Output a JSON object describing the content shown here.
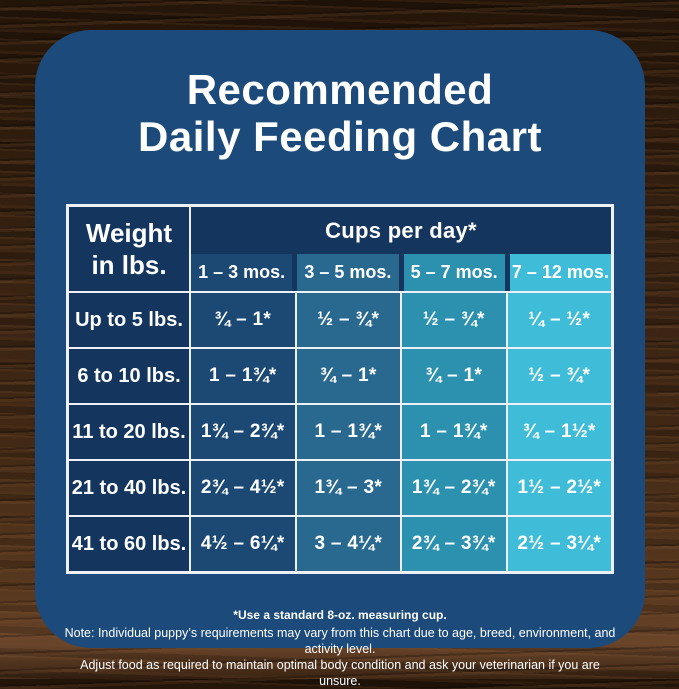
{
  "title": {
    "line1": "Recommended",
    "line2": "Daily Feeding Chart"
  },
  "table": {
    "weight_header_line1": "Weight",
    "weight_header_line2": "in lbs.",
    "cups_header": "Cups per day*",
    "age_columns": [
      "1 – 3 mos.",
      "3 – 5 mos.",
      "5 – 7 mos.",
      "7 – 12 mos."
    ],
    "rows": [
      {
        "weight": "Up to 5 lbs.",
        "values": [
          "¾ – 1*",
          "½ – ¾*",
          "½ – ¾*",
          "¼ – ½*"
        ]
      },
      {
        "weight": "6 to 10 lbs.",
        "values": [
          "1 – 1¾*",
          "¾ – 1*",
          "¾ – 1*",
          "½ – ¾*"
        ]
      },
      {
        "weight": "11 to 20 lbs.",
        "values": [
          "1¾ – 2¾*",
          "1 – 1¾*",
          "1 – 1¾*",
          "¾ – 1½*"
        ]
      },
      {
        "weight": "21 to 40 lbs.",
        "values": [
          "2¾ – 4½*",
          "1¾ – 3*",
          "1¾ – 2¾*",
          "1½ – 2½*"
        ]
      },
      {
        "weight": "41 to 60 lbs.",
        "values": [
          "4½ – 6¼*",
          "3 – 4¼*",
          "2¾ – 3¾*",
          "2½ – 3¼*"
        ]
      }
    ]
  },
  "footnotes": {
    "measuring_cup": "*Use a standard 8-oz. measuring cup.",
    "note_line1": "Note: Individual puppy’s requirements may vary from this chart due to age, breed, environment, and activity level.",
    "note_line2": "Adjust food as required to maintain optimal body condition and ask your veterinarian if you are unsure."
  },
  "colors": {
    "card_background": "#1B4A7B",
    "header_navy": "#14365E",
    "column_1_3_mos": "#1C4874",
    "column_3_5_mos": "#29698F",
    "column_5_7_mos": "#2B91AF",
    "column_7_12_mos": "#3FBCD7",
    "gridline": "#EDF1F5",
    "text": "#FFFFFF"
  }
}
